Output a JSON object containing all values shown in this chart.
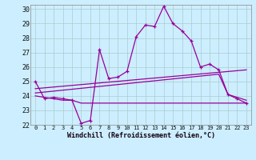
{
  "xlabel": "Windchill (Refroidissement éolien,°C)",
  "background_color": "#cceeff",
  "line_color": "#990099",
  "grid_color": "#aacccc",
  "xlim": [
    -0.5,
    23.5
  ],
  "ylim": [
    22,
    30.3
  ],
  "xticks": [
    0,
    1,
    2,
    3,
    4,
    5,
    6,
    7,
    8,
    9,
    10,
    11,
    12,
    13,
    14,
    15,
    16,
    17,
    18,
    19,
    20,
    21,
    22,
    23
  ],
  "yticks": [
    22,
    23,
    24,
    25,
    26,
    27,
    28,
    29,
    30
  ],
  "line1_x": [
    0,
    1,
    2,
    3,
    4,
    5,
    6,
    7,
    8,
    9,
    10,
    11,
    12,
    13,
    14,
    15,
    16,
    17,
    18,
    19,
    20,
    21,
    22,
    23
  ],
  "line1_y": [
    25.0,
    23.8,
    23.9,
    23.8,
    23.7,
    22.1,
    22.3,
    27.2,
    25.2,
    25.3,
    25.7,
    28.1,
    28.9,
    28.8,
    30.2,
    29.0,
    28.5,
    27.8,
    26.0,
    26.2,
    25.8,
    24.1,
    23.8,
    23.5
  ],
  "line2_x": [
    0,
    23
  ],
  "line2_y": [
    24.5,
    25.8
  ],
  "line3_x": [
    0,
    20,
    21,
    22,
    23
  ],
  "line3_y": [
    24.2,
    25.5,
    24.1,
    23.9,
    23.7
  ],
  "line4_x": [
    0,
    3,
    4,
    5,
    6,
    19,
    20,
    21,
    22,
    23
  ],
  "line4_y": [
    24.0,
    23.7,
    23.7,
    23.5,
    23.5,
    23.5,
    23.5,
    23.5,
    23.5,
    23.5
  ]
}
